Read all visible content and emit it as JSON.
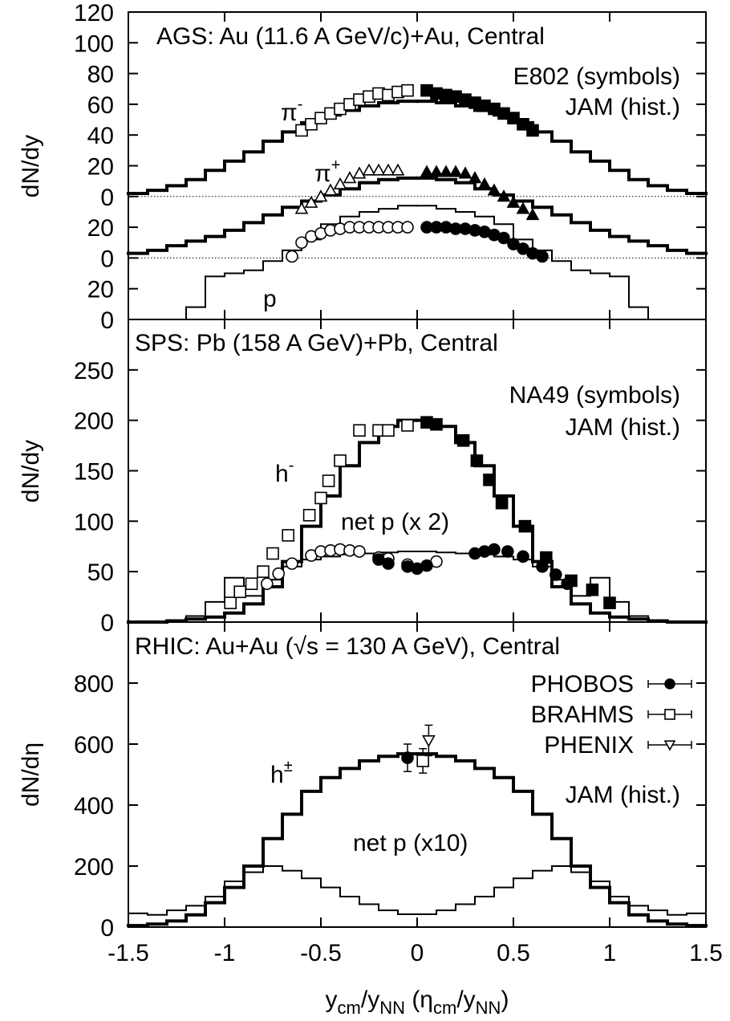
{
  "chart_data": [
    {
      "type": "histogram",
      "title": "AGS: Au (11.6 A GeV/c)+Au, Central",
      "ylabel": "dN/dy",
      "notes": [
        "E802 (symbols)",
        "JAM (hist.)"
      ],
      "labels": [
        {
          "text": "π",
          "sup": "-"
        },
        {
          "text": "π",
          "sup": "+"
        },
        {
          "text": "p"
        }
      ],
      "xlim": [
        -1.5,
        1.5
      ],
      "xticks": [
        -1.5,
        -1,
        -0.5,
        0,
        0.5,
        1,
        1.5
      ],
      "ylim": [
        0,
        200
      ],
      "yticks": [
        0,
        20,
        {
          "value": 40,
          "label": "0"
        },
        {
          "value": 60,
          "label": "20"
        },
        {
          "value": 80,
          "label": "0"
        },
        {
          "value": 100,
          "label": "20"
        },
        {
          "value": 120,
          "label": "40"
        },
        {
          "value": 140,
          "label": "60"
        },
        {
          "value": 160,
          "label": "80"
        },
        {
          "value": 180,
          "label": "100"
        },
        {
          "value": 200,
          "label": "120"
        }
      ],
      "baselines": [
        40,
        80
      ],
      "bins": [
        -1.5,
        -1.4,
        -1.3,
        -1.2,
        -1.1,
        -1,
        -0.9,
        -0.8,
        -0.7,
        -0.6,
        -0.5,
        -0.4,
        -0.3,
        -0.2,
        -0.1,
        0,
        0.1,
        0.2,
        0.3,
        0.4,
        0.5,
        0.6,
        0.7,
        0.8,
        0.9,
        1,
        1.1,
        1.2,
        1.3,
        1.4,
        1.5
      ],
      "hist": [
        {
          "style": "thick",
          "color": "#000000",
          "values": [
            82,
            84,
            87,
            91,
            97,
            103,
            109,
            116,
            122,
            128,
            133,
            136,
            139,
            141,
            142,
            142,
            141,
            139,
            136,
            133,
            128,
            122,
            116,
            109,
            103,
            97,
            91,
            87,
            84,
            82
          ]
        },
        {
          "style": "thick",
          "color": "#000000",
          "values": [
            43,
            45,
            48,
            51,
            54,
            58,
            63,
            68,
            73,
            77,
            81,
            85,
            89,
            91,
            92,
            92,
            91,
            89,
            85,
            81,
            77,
            73,
            68,
            63,
            58,
            54,
            51,
            48,
            45,
            43
          ]
        },
        {
          "style": "thin",
          "color": "#000000",
          "values": [
            0,
            0,
            0,
            8,
            28,
            30,
            32,
            38,
            45,
            52,
            62,
            67,
            70,
            72,
            74,
            74,
            72,
            70,
            67,
            62,
            52,
            45,
            38,
            32,
            30,
            28,
            8,
            0,
            0,
            0
          ]
        }
      ],
      "points": [
        {
          "marker": "square-open",
          "x": [
            -0.6,
            -0.55,
            -0.5,
            -0.45,
            -0.4,
            -0.35,
            -0.3,
            -0.25,
            -0.2,
            -0.15,
            -0.1,
            -0.05
          ],
          "values": [
            123,
            127,
            131,
            134,
            137,
            140,
            143,
            145,
            147,
            146,
            148,
            149
          ]
        },
        {
          "marker": "square-filled",
          "x": [
            0.05,
            0.1,
            0.15,
            0.2,
            0.25,
            0.3,
            0.35,
            0.4,
            0.45,
            0.5,
            0.55,
            0.6
          ],
          "values": [
            149,
            147,
            146,
            145,
            143,
            141,
            139,
            137,
            134,
            131,
            127,
            123
          ]
        },
        {
          "marker": "triangle-open",
          "x": [
            -0.6,
            -0.55,
            -0.5,
            -0.45,
            -0.4,
            -0.35,
            -0.3,
            -0.25,
            -0.2,
            -0.15,
            -0.1
          ],
          "values": [
            72,
            76,
            80,
            84,
            88,
            92,
            95,
            97,
            97,
            97,
            97
          ]
        },
        {
          "marker": "triangle-filled",
          "x": [
            0.05,
            0.1,
            0.15,
            0.2,
            0.25,
            0.3,
            0.35,
            0.4,
            0.45,
            0.5,
            0.55,
            0.6
          ],
          "values": [
            96,
            96,
            96,
            96,
            95,
            92,
            88,
            84,
            80,
            76,
            72,
            68
          ]
        },
        {
          "marker": "circle-open",
          "x": [
            -0.65,
            -0.6,
            -0.55,
            -0.5,
            -0.45,
            -0.4,
            -0.35,
            -0.3,
            -0.25,
            -0.2,
            -0.15,
            -0.1,
            -0.05
          ],
          "values": [
            41,
            50,
            54,
            56,
            58,
            59,
            60,
            60,
            60,
            60,
            60,
            60,
            60
          ]
        },
        {
          "marker": "circle-filled",
          "x": [
            0.05,
            0.1,
            0.15,
            0.2,
            0.25,
            0.3,
            0.35,
            0.4,
            0.45,
            0.5,
            0.55,
            0.6,
            0.65
          ],
          "values": [
            60,
            60,
            60,
            59,
            59,
            58,
            57,
            55,
            53,
            49,
            46,
            43,
            41
          ]
        }
      ]
    },
    {
      "type": "histogram",
      "title": "SPS: Pb (158 A GeV)+Pb, Central",
      "ylabel": "dN/dy",
      "notes": [
        "NA49 (symbols)",
        "JAM (hist.)"
      ],
      "labels": [
        {
          "text": "h",
          "sup": "-"
        },
        {
          "text": "net p (x 2)"
        }
      ],
      "xlim": [
        -1.5,
        1.5
      ],
      "xticks": [
        -1.5,
        -1,
        -0.5,
        0,
        0.5,
        1,
        1.5
      ],
      "ylim": [
        0,
        300
      ],
      "yticks": [
        0,
        50,
        100,
        150,
        200,
        250
      ],
      "bins": [
        -1.5,
        -1.4,
        -1.3,
        -1.2,
        -1.1,
        -1,
        -0.9,
        -0.8,
        -0.7,
        -0.6,
        -0.5,
        -0.4,
        -0.3,
        -0.2,
        -0.1,
        0,
        0.1,
        0.2,
        0.3,
        0.4,
        0.5,
        0.6,
        0.7,
        0.8,
        0.9,
        1,
        1.1,
        1.2,
        1.3,
        1.4,
        1.5
      ],
      "hist": [
        {
          "style": "thick",
          "color": "#000000",
          "values": [
            0,
            0,
            1,
            3,
            5,
            9,
            18,
            35,
            60,
            95,
            125,
            155,
            178,
            194,
            200,
            200,
            194,
            178,
            155,
            125,
            95,
            60,
            35,
            18,
            9,
            5,
            3,
            1,
            0,
            0
          ]
        },
        {
          "style": "thin",
          "color": "#000000",
          "values": [
            0,
            0,
            2,
            6,
            20,
            44,
            26,
            42,
            55,
            62,
            65,
            67,
            68,
            69,
            70,
            70,
            69,
            68,
            67,
            65,
            62,
            55,
            42,
            26,
            44,
            20,
            6,
            2,
            0,
            0
          ]
        }
      ],
      "points": [
        {
          "marker": "square-open",
          "x": [
            -0.97,
            -0.92,
            -0.86,
            -0.8,
            -0.75,
            -0.67,
            -0.56,
            -0.5,
            -0.46,
            -0.4,
            -0.3,
            -0.2,
            -0.15,
            -0.05
          ],
          "values": [
            19,
            30,
            38,
            50,
            68,
            86,
            106,
            123,
            140,
            160,
            190,
            190,
            190,
            195
          ]
        },
        {
          "marker": "square-filled",
          "x": [
            0.05,
            0.1,
            0.24,
            0.31,
            0.375,
            0.44,
            0.56,
            0.67,
            0.8,
            0.91,
            1
          ],
          "values": [
            198,
            196,
            180,
            160,
            141,
            118,
            95,
            64,
            41,
            32,
            19
          ]
        },
        {
          "marker": "circle-open",
          "x": [
            -0.78,
            -0.72,
            -0.65,
            -0.55,
            -0.5,
            -0.45,
            -0.4,
            -0.35,
            -0.3,
            -0.2,
            -0.15,
            -0.05,
            0.1
          ],
          "values": [
            38,
            48,
            58,
            66,
            70,
            71,
            72,
            71,
            70,
            64,
            63,
            57,
            60
          ]
        },
        {
          "marker": "circle-filled",
          "x": [
            -0.2,
            -0.15,
            -0.05,
            0,
            0.05,
            0.3,
            0.35,
            0.4,
            0.47,
            0.55,
            0.65,
            0.72,
            0.78
          ],
          "values": [
            62,
            58,
            55,
            53,
            56,
            68,
            70,
            72,
            70,
            65,
            55,
            47,
            38
          ]
        }
      ]
    },
    {
      "type": "histogram",
      "title": "RHIC: Au+Au (√s = 130 A GeV), Central",
      "ylabel": "dN/dη",
      "notes": [
        "JAM (hist.)"
      ],
      "labels": [
        {
          "text": "h",
          "sup": "±"
        },
        {
          "text": "net p (x10)"
        }
      ],
      "xlabel": [
        "y",
        "cm",
        "/y",
        "NN",
        " (η",
        "cm",
        "/y",
        "NN",
        ")"
      ],
      "xlim": [
        -1.5,
        1.5
      ],
      "xticks": [
        -1.5,
        -1,
        -0.5,
        0,
        0.5,
        1,
        1.5
      ],
      "ylim": [
        0,
        1000
      ],
      "yticks": [
        0,
        200,
        400,
        600,
        800
      ],
      "bins": [
        -1.5,
        -1.4,
        -1.3,
        -1.2,
        -1.1,
        -1,
        -0.9,
        -0.8,
        -0.7,
        -0.6,
        -0.5,
        -0.4,
        -0.3,
        -0.2,
        -0.1,
        0,
        0.1,
        0.2,
        0.3,
        0.4,
        0.5,
        0.6,
        0.7,
        0.8,
        0.9,
        1,
        1.1,
        1.2,
        1.3,
        1.4,
        1.5
      ],
      "hist": [
        {
          "style": "thick",
          "color": "#000000",
          "values": [
            5,
            10,
            20,
            40,
            80,
            130,
            200,
            290,
            370,
            445,
            490,
            520,
            545,
            560,
            568,
            568,
            560,
            545,
            520,
            490,
            445,
            370,
            290,
            200,
            130,
            80,
            40,
            20,
            10,
            5
          ]
        },
        {
          "style": "thin",
          "color": "#000000",
          "values": [
            45,
            40,
            55,
            70,
            100,
            150,
            180,
            200,
            185,
            160,
            130,
            100,
            75,
            55,
            42,
            42,
            55,
            75,
            100,
            130,
            160,
            185,
            200,
            180,
            150,
            100,
            70,
            55,
            40,
            45
          ]
        }
      ],
      "points": [
        {
          "name": "PHOBOS",
          "marker": "circle-filled",
          "x": [
            -0.05
          ],
          "values": [
            555
          ],
          "errors": [
            45
          ]
        },
        {
          "name": "BRAHMS",
          "marker": "square-open",
          "x": [
            0.03
          ],
          "values": [
            545
          ],
          "errors": [
            40
          ]
        },
        {
          "name": "PHENIX",
          "marker": "triangledown-open",
          "x": [
            0.06
          ],
          "values": [
            612
          ],
          "errors": [
            50
          ]
        }
      ]
    }
  ]
}
